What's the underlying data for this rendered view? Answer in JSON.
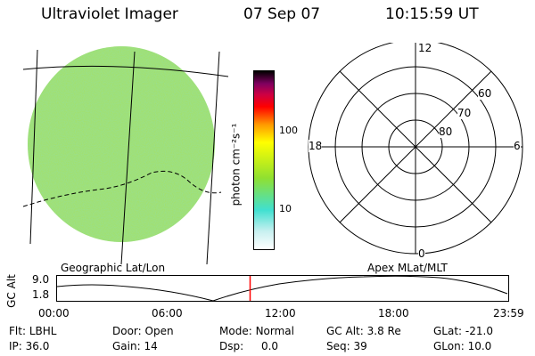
{
  "header": {
    "instrument": "Ultraviolet Imager",
    "date": "07 Sep 07",
    "time": "10:15:59 UT"
  },
  "colorbar": {
    "label": "photon cm⁻²s⁻¹",
    "ticks": [
      "100",
      "10"
    ],
    "scale": "log",
    "colors": [
      "#ffffff",
      "#c8f0f0",
      "#40e0d0",
      "#90e030",
      "#ffff00",
      "#ff9900",
      "#ff0000",
      "#cc0044",
      "#800060",
      "#000000"
    ]
  },
  "image_panel": {
    "label": "Geographic Lat/Lon",
    "fill_color": "#a6e060"
  },
  "polar_panel": {
    "label": "Apex  MLat/MLT",
    "mlt_labels": {
      "top": "12",
      "left": "18",
      "right": "6",
      "bottom": "0"
    },
    "lat_labels": [
      "60",
      "70",
      "80"
    ]
  },
  "timeline": {
    "ylabel": "GC Alt",
    "yticks": [
      "9.0",
      "1.8"
    ],
    "xticks": [
      "00:00",
      "06:00",
      "12:00",
      "18:00",
      "23:59"
    ],
    "marker_color": "#ff0000",
    "current_hour": 10.27
  },
  "info": {
    "filter_label": "Flt:",
    "filter_value": "LBHL",
    "ip_label": "IP:",
    "ip_value": "36.0",
    "door_label": "Door:",
    "door_value": "Open",
    "gain_label": "Gain:",
    "gain_value": "14",
    "mode_label": "Mode:",
    "mode_value": "Normal",
    "dsp_label": "Dsp:",
    "dsp_value": "0.0",
    "gcalt_label": "GC Alt:",
    "gcalt_value": "3.8 Re",
    "seq_label": "Seq:",
    "seq_value": "39",
    "glat_label": "GLat:",
    "glat_value": "-21.0",
    "glon_label": "GLon:",
    "glon_value": "10.0"
  }
}
